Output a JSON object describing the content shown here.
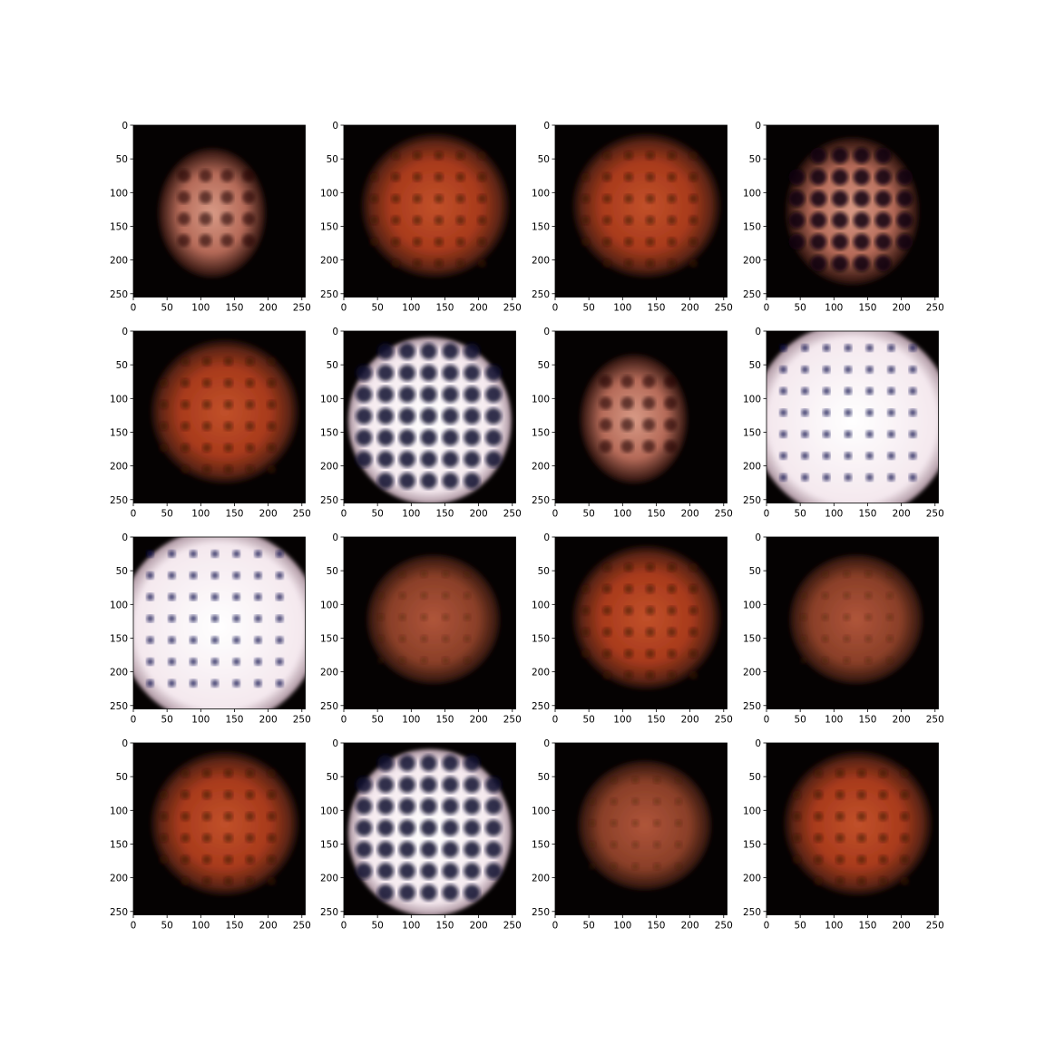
{
  "figure": {
    "rows": 4,
    "cols": 4
  },
  "chart_data": {
    "type": "heatmap",
    "description_kind": "image-grid",
    "x_ticks": [
      "0",
      "50",
      "100",
      "150",
      "200",
      "250"
    ],
    "y_ticks": [
      "0",
      "50",
      "100",
      "150",
      "200",
      "250"
    ],
    "xlim": [
      0,
      255
    ],
    "ylim": [
      255,
      0
    ],
    "grid": false,
    "panels": [
      {
        "style": "dim-pink"
      },
      {
        "style": "orange-round"
      },
      {
        "style": "orange-round"
      },
      {
        "style": "pink-grid"
      },
      {
        "style": "orange-round"
      },
      {
        "style": "white-grid"
      },
      {
        "style": "dim-pink"
      },
      {
        "style": "white-full"
      },
      {
        "style": "white-full"
      },
      {
        "style": "orange-soft"
      },
      {
        "style": "orange-round"
      },
      {
        "style": "orange-soft"
      },
      {
        "style": "orange-round"
      },
      {
        "style": "white-grid"
      },
      {
        "style": "orange-soft"
      },
      {
        "style": "orange-round"
      }
    ]
  }
}
